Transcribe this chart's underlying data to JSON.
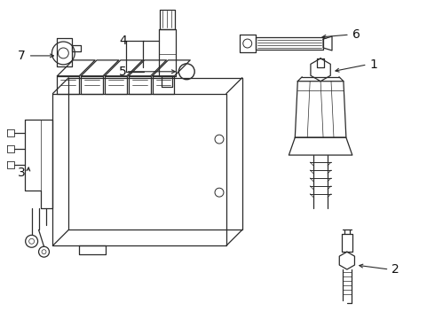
{
  "bg_color": "#ffffff",
  "line_color": "#2a2a2a",
  "label_color": "#111111",
  "lw": 0.9
}
